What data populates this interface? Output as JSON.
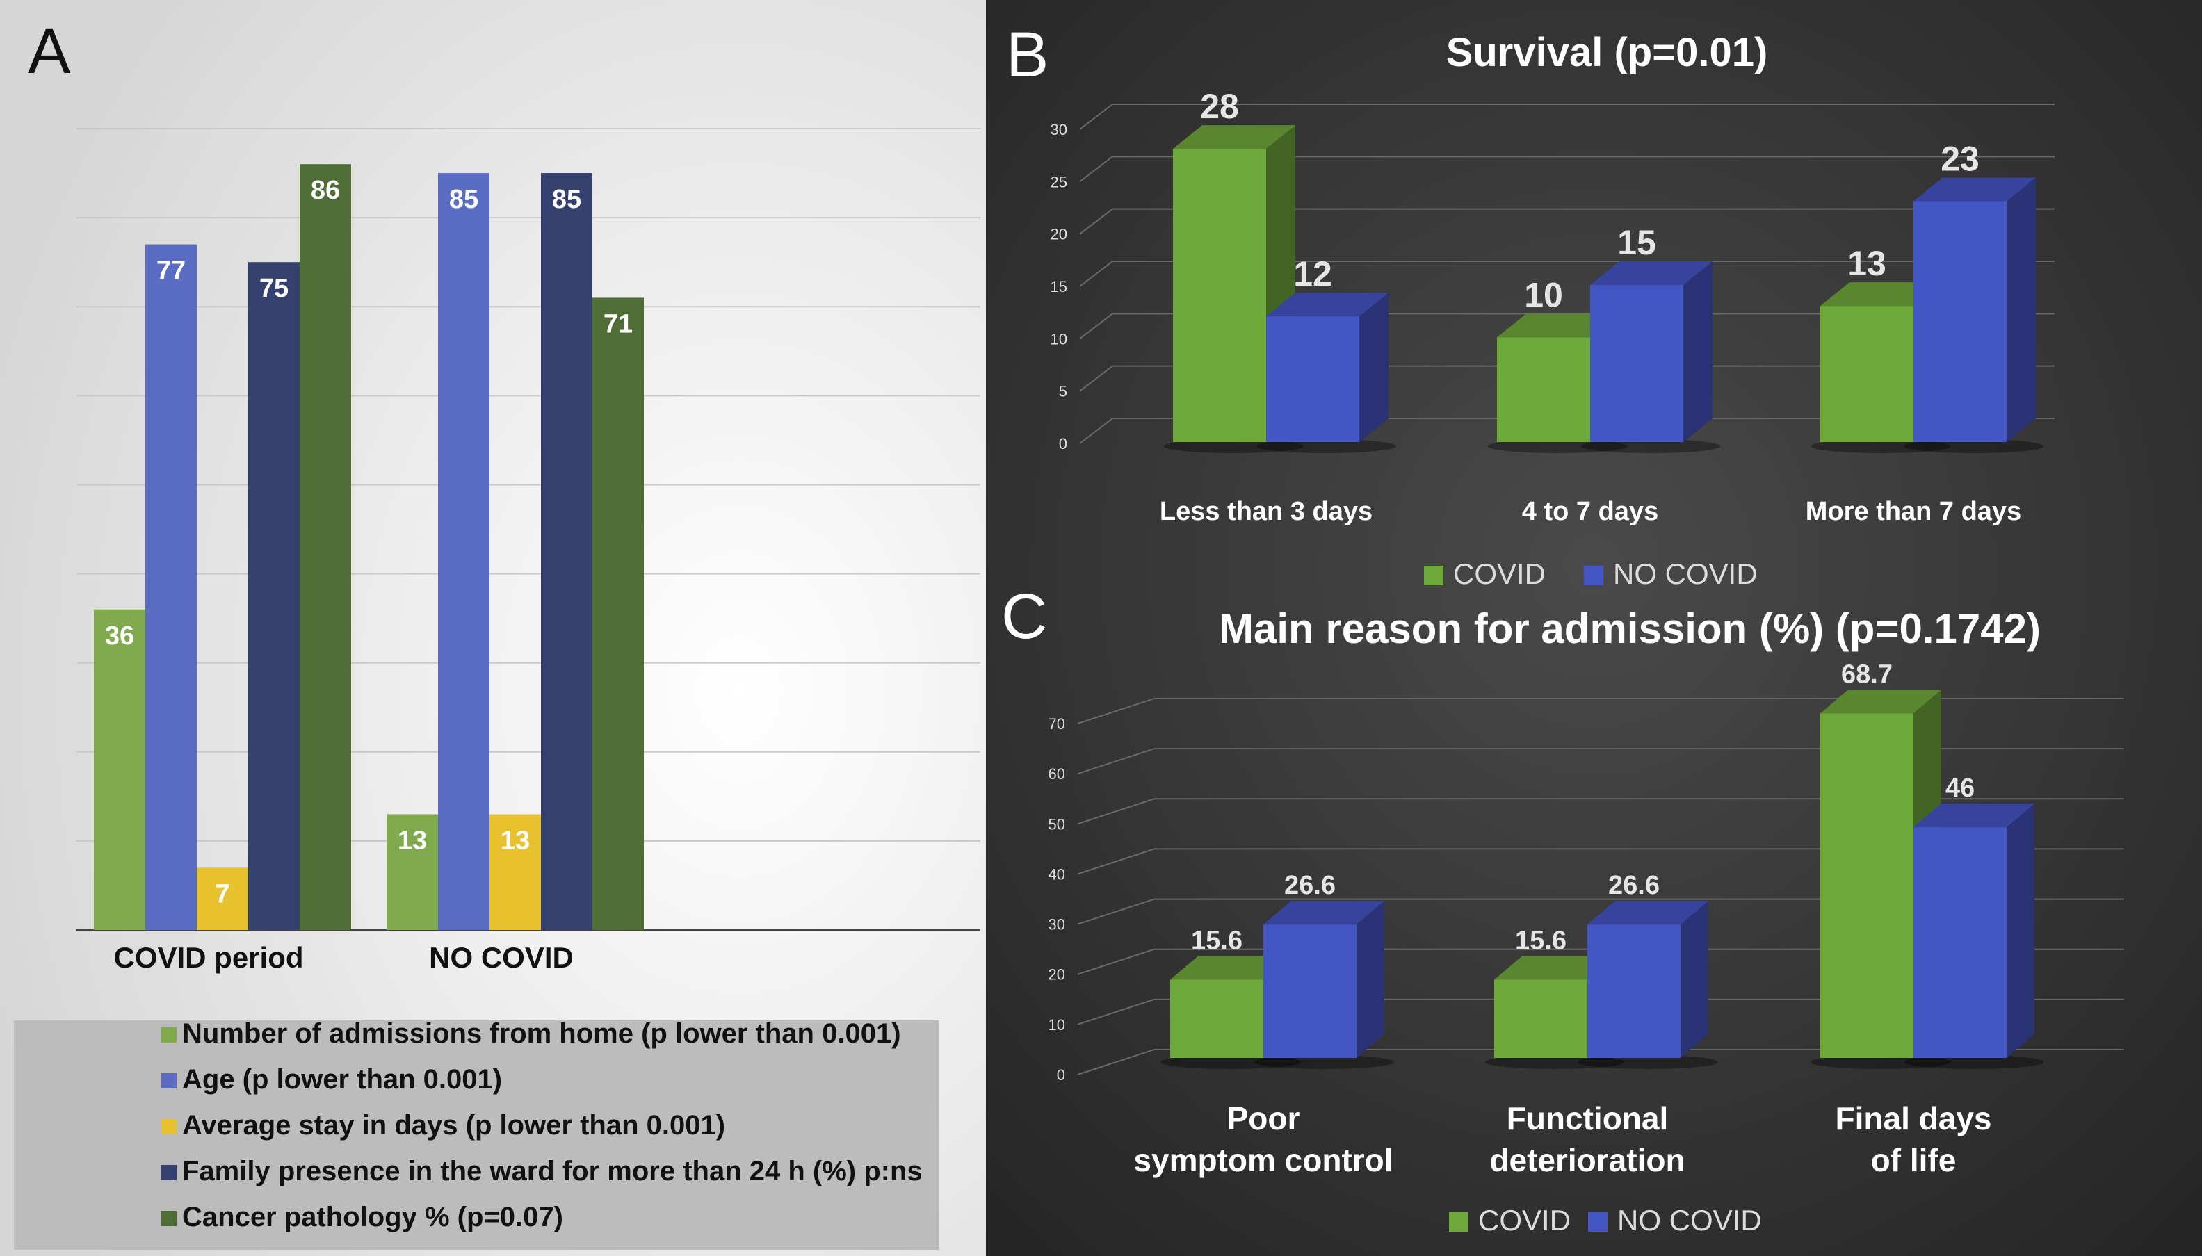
{
  "chart_data": [
    {
      "panel": "A",
      "type": "bar",
      "title": "",
      "categories": [
        "COVID period",
        "NO COVID"
      ],
      "series": [
        {
          "name": "Number of admissions from home (p lower than 0.001)",
          "values": [
            36,
            13
          ],
          "color": "#7fab4c"
        },
        {
          "name": "Age (p lower than 0.001)",
          "values": [
            77,
            85
          ],
          "color": "#5b6cc3"
        },
        {
          "name": "Average stay in days (p lower than 0.001)",
          "values": [
            7,
            13
          ],
          "color": "#e8c22e"
        },
        {
          "name": "Family presence in the ward for more than 24 h (%) p:ns",
          "values": [
            75,
            85
          ],
          "color": "#34406e"
        },
        {
          "name": "Cancer pathology % (p=0.07)",
          "values": [
            86,
            71
          ],
          "color": "#4f6e36"
        }
      ],
      "ylim": [
        0,
        90
      ],
      "xlabel": "",
      "ylabel": "",
      "legend": "bottom"
    },
    {
      "panel": "B",
      "type": "bar",
      "title": "Survival (p=0.01)",
      "categories": [
        "Less than 3 days",
        "4 to 7 days",
        "More than 7 days"
      ],
      "series": [
        {
          "name": "COVID",
          "values": [
            28,
            10,
            13
          ],
          "color": "#6fa83a"
        },
        {
          "name": "NO COVID",
          "values": [
            12,
            15,
            23
          ],
          "color": "#4455c4"
        }
      ],
      "yticks": [
        "0",
        "5",
        "10",
        "15",
        "20",
        "25",
        "30"
      ],
      "ylim": [
        0,
        30
      ],
      "legend": "bottom"
    },
    {
      "panel": "C",
      "type": "bar",
      "title": "Main reason for admission (%) (p=0.1742)",
      "categories": [
        "Poor symptom control",
        "Functional deterioration",
        "Final days of life"
      ],
      "series": [
        {
          "name": "COVID",
          "values": [
            15.6,
            15.6,
            68.7
          ],
          "color": "#6fa83a"
        },
        {
          "name": "NO COVID",
          "values": [
            26.6,
            26.6,
            46
          ],
          "color": "#4455c4"
        }
      ],
      "yticks": [
        "0",
        "10",
        "20",
        "30",
        "40",
        "50",
        "60",
        "70"
      ],
      "ylim": [
        0,
        70
      ],
      "legend": "bottom"
    }
  ],
  "panel_labels": {
    "a": "A",
    "b": "B",
    "c": "C"
  },
  "colors": {
    "dark_bg": "#2f2f2f",
    "light_bg": "#e9e9e9",
    "legend_bg": "#bdbcbc"
  }
}
